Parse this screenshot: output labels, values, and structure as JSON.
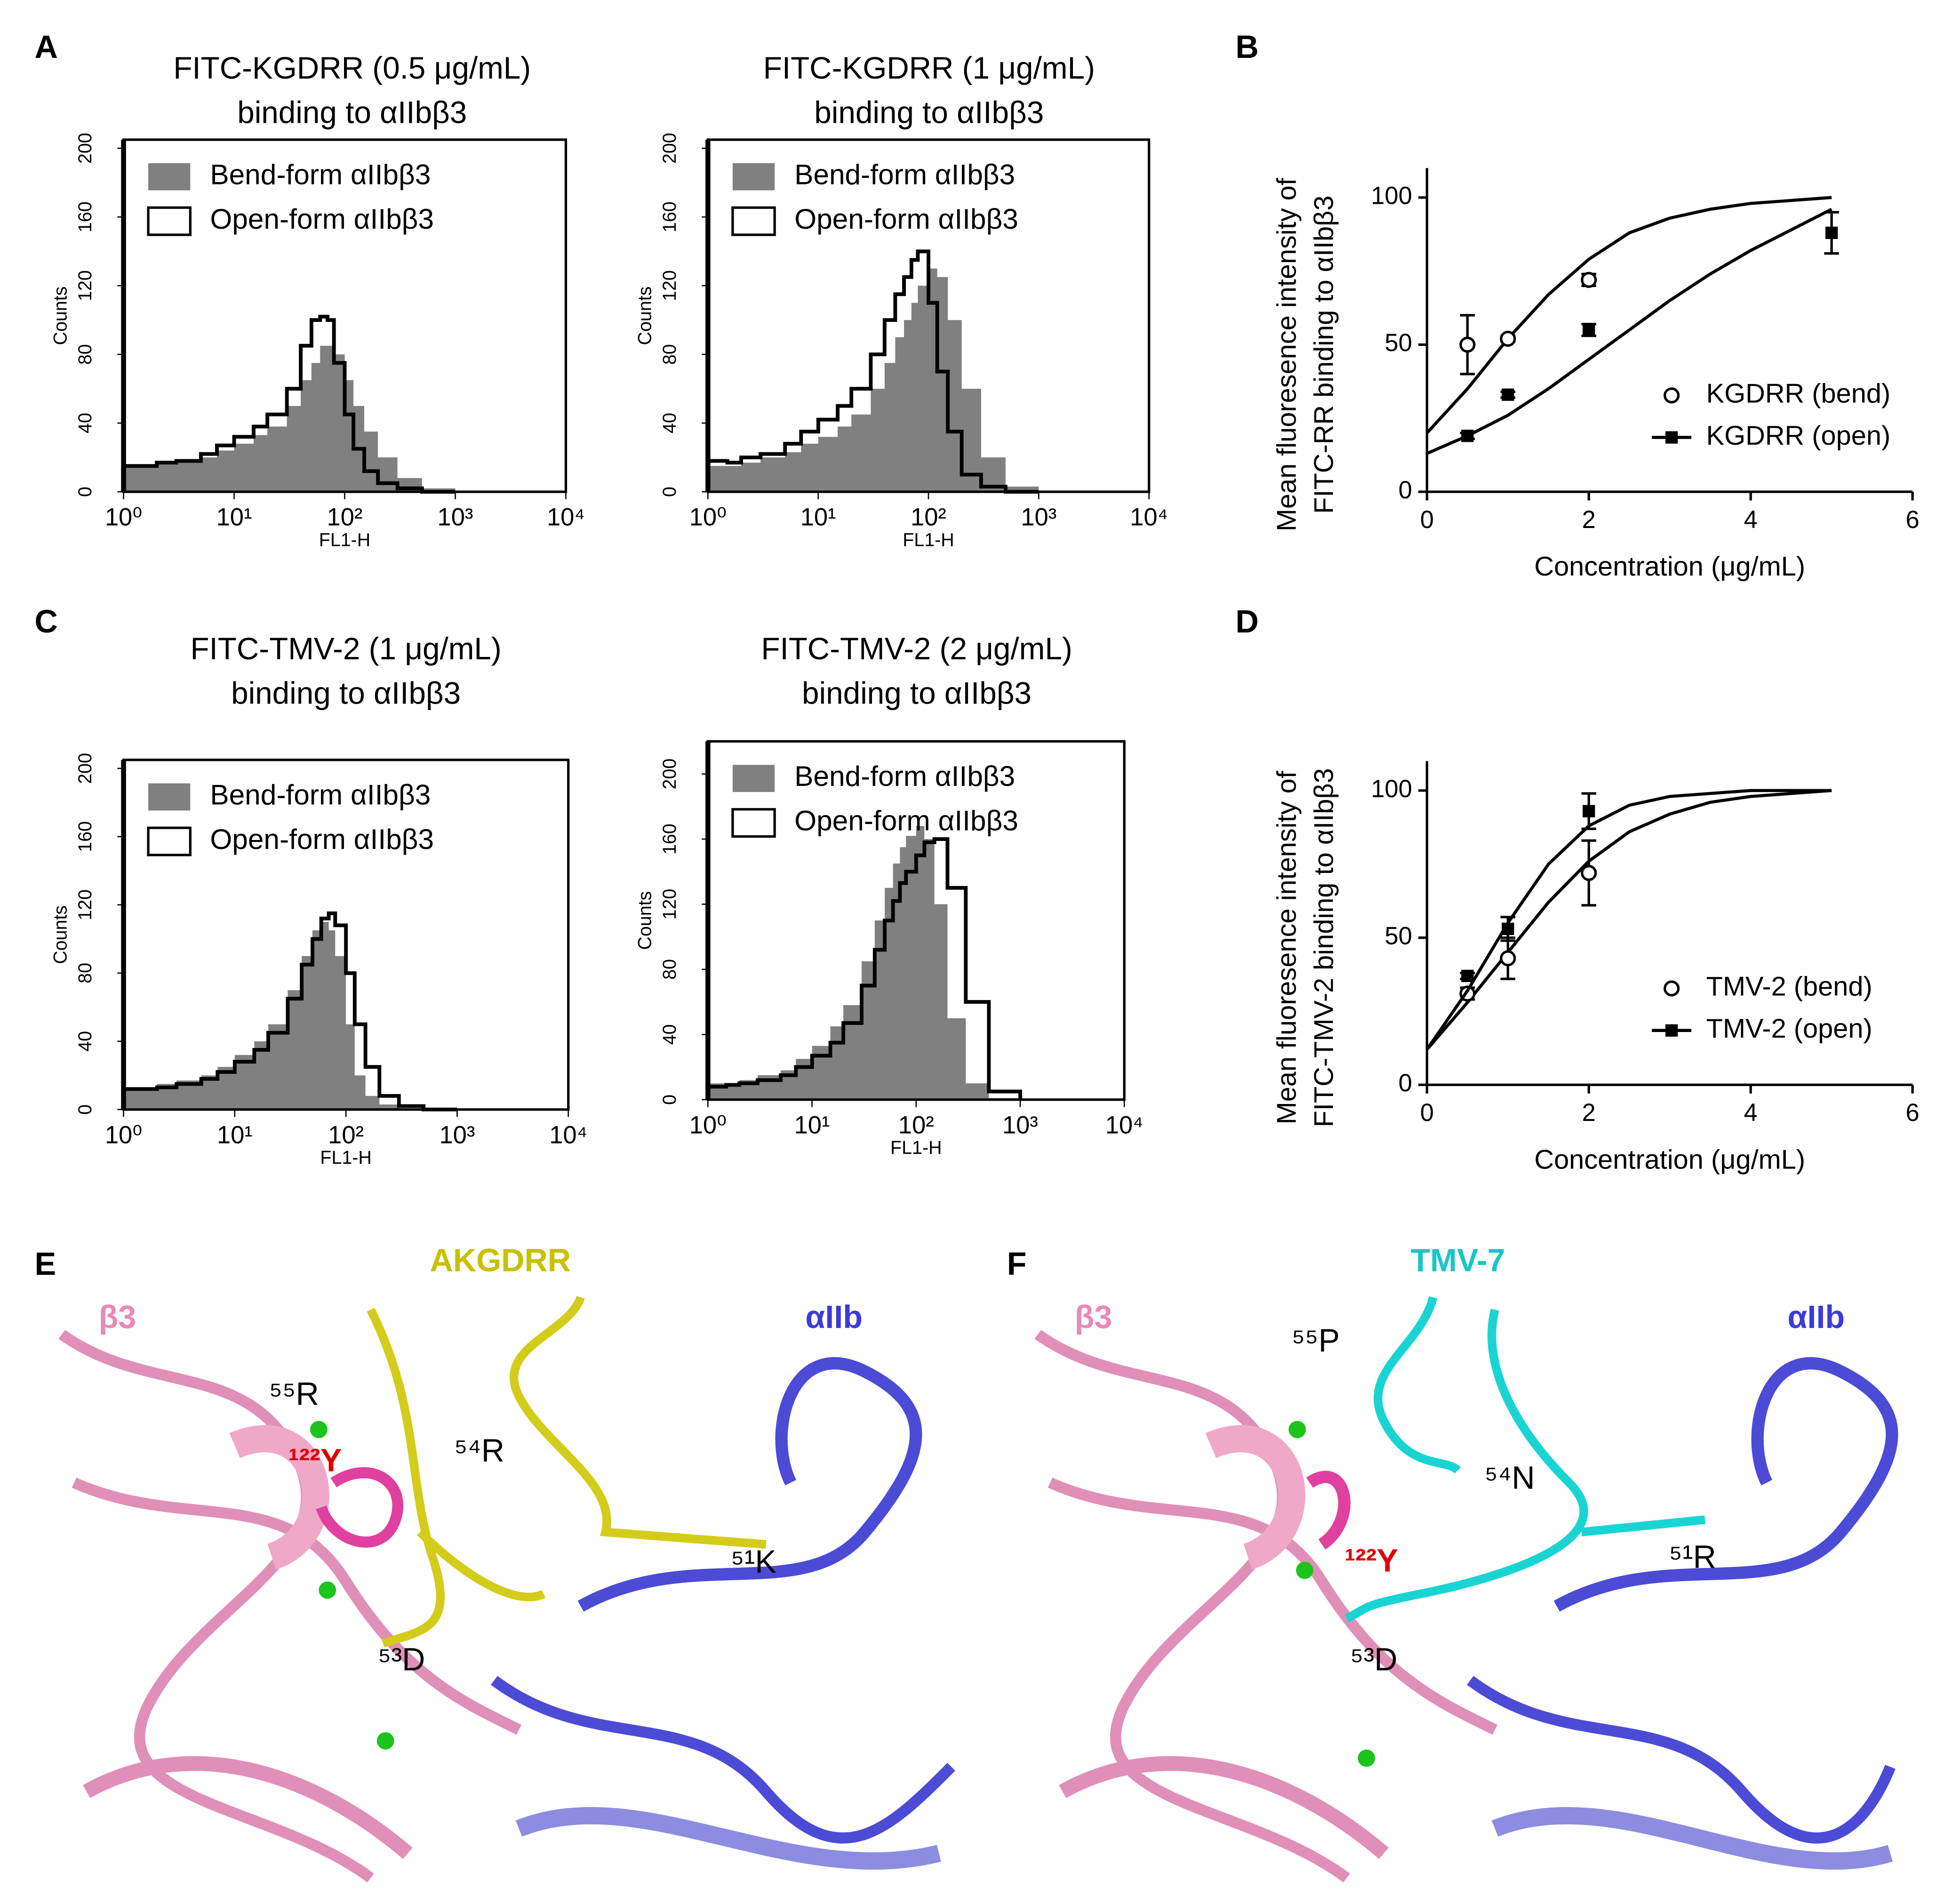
{
  "panels": [
    "A",
    "B",
    "C",
    "D",
    "E",
    "F"
  ],
  "chart_data": [
    {
      "type": "area",
      "title": "FITC-KGDRR (0.5 μg/mL)",
      "subtitle": "binding to αIIbβ3",
      "x_label": "FL1-H",
      "y_label": "Counts",
      "log_x": true,
      "xlim": [
        1,
        10000
      ],
      "xticks": [
        {
          "value": 1,
          "label": "10⁰"
        },
        {
          "value": 10,
          "label": "10¹"
        },
        {
          "value": 100,
          "label": "10²"
        },
        {
          "value": 1000,
          "label": "10³"
        },
        {
          "value": 10000,
          "label": "10⁴"
        }
      ],
      "ylim": [
        0,
        205
      ],
      "yticks": [
        0,
        40,
        80,
        120,
        160,
        200
      ],
      "x": [
        1,
        1.5,
        2,
        3,
        5,
        7,
        10,
        15,
        20,
        30,
        40,
        50,
        60,
        70,
        80,
        100,
        120,
        150,
        200,
        300,
        500,
        1000
      ],
      "series": [
        {
          "name": "Bend-form αIIbβ3",
          "color": "#808080",
          "values": [
            15,
            14,
            17,
            18,
            20,
            24,
            28,
            33,
            38,
            50,
            65,
            75,
            85,
            85,
            80,
            65,
            50,
            35,
            20,
            8,
            2,
            0
          ]
        },
        {
          "name": "Open-form αIIbβ3",
          "color": "#000000",
          "values": [
            15,
            15,
            17,
            18,
            22,
            27,
            32,
            38,
            45,
            60,
            85,
            100,
            102,
            100,
            75,
            45,
            25,
            12,
            5,
            2,
            0,
            0
          ]
        }
      ]
    },
    {
      "type": "area",
      "title": "FITC-KGDRR (1 μg/mL)",
      "subtitle": "binding to αIIbβ3",
      "x_label": "FL1-H",
      "y_label": "Counts",
      "log_x": true,
      "xlim": [
        1,
        10000
      ],
      "xticks": [
        {
          "value": 1,
          "label": "10⁰"
        },
        {
          "value": 10,
          "label": "10¹"
        },
        {
          "value": 100,
          "label": "10²"
        },
        {
          "value": 1000,
          "label": "10³"
        },
        {
          "value": 10000,
          "label": "10⁴"
        }
      ],
      "ylim": [
        0,
        205
      ],
      "yticks": [
        0,
        40,
        80,
        120,
        160,
        200
      ],
      "x": [
        1,
        1.5,
        2,
        3,
        5,
        7,
        10,
        15,
        20,
        30,
        40,
        50,
        60,
        70,
        80,
        100,
        120,
        150,
        200,
        300,
        500,
        1000
      ],
      "series": [
        {
          "name": "Bend-form αIIbβ3",
          "color": "#808080",
          "values": [
            15,
            15,
            17,
            20,
            23,
            28,
            32,
            38,
            45,
            60,
            75,
            90,
            100,
            110,
            120,
            130,
            125,
            100,
            60,
            20,
            3,
            0
          ]
        },
        {
          "name": "Open-form αIIbβ3",
          "color": "#000000",
          "values": [
            18,
            17,
            20,
            22,
            28,
            35,
            42,
            50,
            60,
            80,
            100,
            115,
            125,
            135,
            140,
            110,
            70,
            35,
            10,
            3,
            0,
            0
          ]
        }
      ]
    },
    {
      "type": "scatter",
      "x_label": "Concentration (μg/mL)",
      "y_label": [
        "Mean fluoresence intensity of",
        "FITC-RR binding to αIIbβ3"
      ],
      "xlim": [
        0,
        6
      ],
      "xticks": [
        0,
        2,
        4,
        6
      ],
      "ylim": [
        0,
        110
      ],
      "yticks": [
        0,
        50,
        100
      ],
      "fit_x": [
        0,
        0.5,
        1,
        1.5,
        2,
        2.5,
        3,
        3.5,
        4,
        4.5,
        5
      ],
      "series": [
        {
          "name": "KGDRR (bend)",
          "color": "#000000",
          "marker": "circle-open",
          "x": [
            0.5,
            1,
            2
          ],
          "values": [
            50,
            52,
            72
          ],
          "errors": [
            10,
            1,
            2
          ],
          "fit_values": [
            20,
            35,
            52,
            67,
            79,
            88,
            93,
            96,
            98,
            99,
            100
          ]
        },
        {
          "name": "KGDRR (open)",
          "color": "#000000",
          "marker": "square",
          "x": [
            0.5,
            1,
            2,
            5
          ],
          "values": [
            19,
            33,
            55,
            88
          ],
          "errors": [
            1,
            1,
            2,
            7
          ],
          "fit_values": [
            13,
            19,
            26,
            35,
            45,
            55,
            65,
            74,
            82,
            89,
            96
          ]
        }
      ]
    },
    {
      "type": "area",
      "title": "FITC-TMV-2 (1 μg/mL)",
      "subtitle": "binding to αIIbβ3",
      "x_label": "FL1-H",
      "y_label": "Counts",
      "log_x": true,
      "xlim": [
        1,
        10000
      ],
      "xticks": [
        {
          "value": 1,
          "label": "10⁰"
        },
        {
          "value": 10,
          "label": "10¹"
        },
        {
          "value": 100,
          "label": "10²"
        },
        {
          "value": 1000,
          "label": "10³"
        },
        {
          "value": 10000,
          "label": "10⁴"
        }
      ],
      "ylim": [
        0,
        205
      ],
      "yticks": [
        0,
        40,
        80,
        120,
        160,
        200
      ],
      "x": [
        1,
        1.5,
        2,
        3,
        5,
        7,
        10,
        15,
        20,
        30,
        40,
        50,
        60,
        70,
        80,
        100,
        120,
        150,
        200,
        300,
        500,
        1000
      ],
      "series": [
        {
          "name": "Bend-form αIIbβ3",
          "color": "#808080",
          "values": [
            12,
            13,
            15,
            17,
            20,
            25,
            32,
            40,
            50,
            70,
            90,
            105,
            110,
            105,
            90,
            50,
            20,
            8,
            3,
            0,
            0,
            0
          ]
        },
        {
          "name": "Open-form αIIbβ3",
          "color": "#000000",
          "values": [
            12,
            12,
            13,
            15,
            18,
            22,
            28,
            35,
            45,
            65,
            85,
            100,
            112,
            115,
            108,
            80,
            50,
            25,
            8,
            2,
            0,
            0
          ]
        }
      ]
    },
    {
      "type": "area",
      "title": "FITC-TMV-2 (2 μg/mL)",
      "subtitle": "binding to αIIbβ3",
      "x_label": "FL1-H",
      "y_label": "Counts",
      "log_x": true,
      "xlim": [
        1,
        10000
      ],
      "xticks": [
        {
          "value": 1,
          "label": "10⁰"
        },
        {
          "value": 10,
          "label": "10¹"
        },
        {
          "value": 100,
          "label": "10²"
        },
        {
          "value": 1000,
          "label": "10³"
        },
        {
          "value": 10000,
          "label": "10⁴"
        }
      ],
      "ylim": [
        0,
        220
      ],
      "yticks": [
        0,
        40,
        80,
        120,
        160,
        200
      ],
      "x": [
        1,
        1.5,
        2,
        3,
        5,
        7,
        10,
        15,
        20,
        30,
        40,
        50,
        60,
        70,
        80,
        100,
        120,
        150,
        200,
        300,
        500,
        1000
      ],
      "series": [
        {
          "name": "Bend-form αIIbβ3",
          "color": "#808080",
          "values": [
            10,
            10,
            12,
            15,
            18,
            25,
            33,
            45,
            58,
            85,
            110,
            130,
            145,
            155,
            162,
            168,
            160,
            120,
            50,
            10,
            1,
            0
          ]
        },
        {
          "name": "Open-form αIIbβ3",
          "color": "#000000",
          "values": [
            8,
            9,
            10,
            12,
            15,
            20,
            27,
            35,
            47,
            70,
            92,
            110,
            122,
            133,
            140,
            150,
            158,
            160,
            130,
            60,
            5,
            0
          ]
        }
      ]
    },
    {
      "type": "scatter",
      "x_label": "Concentration (μg/mL)",
      "y_label": [
        "Mean fluoresence intensity of",
        "FITC-TMV-2 binding to αIIbβ3"
      ],
      "xlim": [
        0,
        6
      ],
      "xticks": [
        0,
        2,
        4,
        6
      ],
      "ylim": [
        0,
        110
      ],
      "yticks": [
        0,
        50,
        100
      ],
      "fit_x": [
        0,
        0.5,
        1,
        1.5,
        2,
        2.5,
        3,
        3.5,
        4,
        4.5,
        5
      ],
      "series": [
        {
          "name": "TMV-2 (bend)",
          "color": "#000000",
          "marker": "circle-open",
          "x": [
            0.5,
            1,
            2
          ],
          "values": [
            31,
            43,
            72
          ],
          "errors": [
            2,
            7,
            11
          ],
          "fit_values": [
            12,
            28,
            45,
            62,
            76,
            86,
            92,
            96,
            98,
            99,
            100
          ]
        },
        {
          "name": "TMV-2 (open)",
          "color": "#000000",
          "marker": "square",
          "x": [
            0.5,
            1,
            2
          ],
          "values": [
            37,
            53,
            93
          ],
          "errors": [
            1,
            4,
            6
          ],
          "fit_values": [
            12,
            32,
            55,
            75,
            88,
            95,
            98,
            99,
            100,
            100,
            100
          ]
        }
      ]
    }
  ],
  "structures": [
    {
      "peptide": "AKGDRR",
      "beta": "β3",
      "alpha": "αIIb",
      "residues": [
        "⁵⁵R",
        "¹²²Y",
        "⁵⁴R",
        "⁵¹K",
        "⁵³D"
      ]
    },
    {
      "peptide": "TMV-7",
      "beta": "β3",
      "alpha": "αIIb",
      "residues": [
        "⁵⁵P",
        "⁵⁴N",
        "¹²²Y",
        "⁵¹R",
        "⁵³D"
      ]
    }
  ]
}
